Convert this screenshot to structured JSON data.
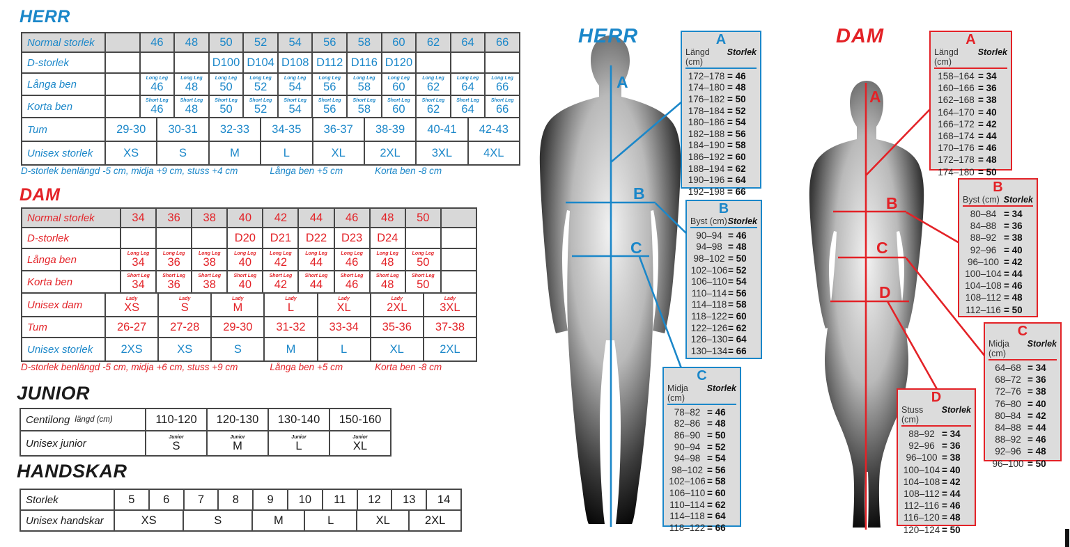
{
  "colors": {
    "blue": "#1b87c9",
    "red": "#e32227",
    "table_border": "#474747",
    "header_bg": "#d8d8d8",
    "box_bg": "#dcdcdc",
    "text_dark": "#1a1a1a"
  },
  "sections": {
    "herr": {
      "title": "HERR",
      "note_parts": [
        "D-storlek benlängd -5 cm, midja +9 cm, stuss +4 cm",
        "Långa ben +5 cm",
        "Korta ben -8 cm"
      ]
    },
    "dam": {
      "title": "DAM",
      "note_parts": [
        "D-storlek benlängd -5 cm, midja +6 cm, stuss +9 cm",
        "Långa ben +5 cm",
        "Korta ben -8 cm"
      ]
    },
    "junior": {
      "title": "JUNIOR"
    },
    "handskar": {
      "title": "HANDSKAR"
    }
  },
  "figures": {
    "herr": {
      "title": "HERR",
      "markers": [
        "A",
        "B",
        "C"
      ]
    },
    "dam": {
      "title": "DAM",
      "markers": [
        "A",
        "B",
        "C",
        "D"
      ]
    }
  },
  "tables": {
    "herr": {
      "color": "blue",
      "rows": [
        {
          "label": "Normal storlek",
          "hdr": true,
          "cells": [
            "",
            "46",
            "48",
            "50",
            "52",
            "54",
            "56",
            "58",
            "60",
            "62",
            "64",
            "66"
          ]
        },
        {
          "label": "D-storlek",
          "cells": [
            "",
            "",
            "",
            "D100",
            "D104",
            "D108",
            "D112",
            "D116",
            "D120",
            "",
            "",
            ""
          ]
        },
        {
          "label": "Långa ben",
          "cells": [
            "",
            {
              "t": "46",
              "sub": "Long Leg"
            },
            {
              "t": "48",
              "sub": "Long Leg"
            },
            {
              "t": "50",
              "sub": "Long Leg"
            },
            {
              "t": "52",
              "sub": "Long Leg"
            },
            {
              "t": "54",
              "sub": "Long Leg"
            },
            {
              "t": "56",
              "sub": "Long Leg"
            },
            {
              "t": "58",
              "sub": "Long Leg"
            },
            {
              "t": "60",
              "sub": "Long Leg"
            },
            {
              "t": "62",
              "sub": "Long Leg"
            },
            {
              "t": "64",
              "sub": "Long Leg"
            },
            {
              "t": "66",
              "sub": "Long Leg"
            }
          ]
        },
        {
          "label": "Korta ben",
          "cells": [
            "",
            {
              "t": "46",
              "sub": "Short Leg"
            },
            {
              "t": "48",
              "sub": "Short Leg"
            },
            {
              "t": "50",
              "sub": "Short Leg"
            },
            {
              "t": "52",
              "sub": "Short Leg"
            },
            {
              "t": "54",
              "sub": "Short Leg"
            },
            {
              "t": "56",
              "sub": "Short Leg"
            },
            {
              "t": "58",
              "sub": "Short Leg"
            },
            {
              "t": "60",
              "sub": "Short Leg"
            },
            {
              "t": "62",
              "sub": "Short Leg"
            },
            {
              "t": "64",
              "sub": "Short Leg"
            },
            {
              "t": "66",
              "sub": "Short Leg"
            }
          ]
        },
        {
          "label": "Tum",
          "cells": [
            {
              "t": "29-30",
              "s": 1.5
            },
            {
              "t": "30-31",
              "s": 1.5
            },
            {
              "t": "32-33",
              "s": 1.5
            },
            {
              "t": "34-35",
              "s": 1.5
            },
            {
              "t": "36-37",
              "s": 1.5
            },
            {
              "t": "38-39",
              "s": 1.5
            },
            {
              "t": "40-41",
              "s": 1.5
            },
            {
              "t": "42-43",
              "s": 1.5
            }
          ]
        },
        {
          "label": "Unisex storlek",
          "cells": [
            {
              "t": "XS",
              "s": 1.5
            },
            {
              "t": "S",
              "s": 1.5
            },
            {
              "t": "M",
              "s": 1.5
            },
            {
              "t": "L",
              "s": 1.5
            },
            {
              "t": "XL",
              "s": 1.5
            },
            {
              "t": "2XL",
              "s": 1.5
            },
            {
              "t": "3XL",
              "s": 1.5
            },
            {
              "t": "4XL",
              "s": 1.5
            }
          ]
        }
      ]
    },
    "dam": {
      "color": "red",
      "rows": [
        {
          "label": "Normal storlek",
          "hdr": true,
          "cells": [
            "34",
            "36",
            "38",
            "40",
            "42",
            "44",
            "46",
            "48",
            "50",
            ""
          ]
        },
        {
          "label": "D-storlek",
          "cells": [
            "",
            "",
            "",
            "D20",
            "D21",
            "D22",
            "D23",
            "D24",
            "",
            ""
          ]
        },
        {
          "label": "Långa ben",
          "cells": [
            {
              "t": "34",
              "sub": "Long Leg"
            },
            {
              "t": "36",
              "sub": "Long Leg"
            },
            {
              "t": "38",
              "sub": "Long Leg"
            },
            {
              "t": "40",
              "sub": "Long Leg"
            },
            {
              "t": "42",
              "sub": "Long Leg"
            },
            {
              "t": "44",
              "sub": "Long Leg"
            },
            {
              "t": "46",
              "sub": "Long Leg"
            },
            {
              "t": "48",
              "sub": "Long Leg"
            },
            {
              "t": "50",
              "sub": "Long Leg"
            },
            ""
          ]
        },
        {
          "label": "Korta ben",
          "cells": [
            {
              "t": "34",
              "sub": "Short Leg"
            },
            {
              "t": "36",
              "sub": "Short Leg"
            },
            {
              "t": "38",
              "sub": "Short Leg"
            },
            {
              "t": "40",
              "sub": "Short Leg"
            },
            {
              "t": "42",
              "sub": "Short Leg"
            },
            {
              "t": "44",
              "sub": "Short Leg"
            },
            {
              "t": "46",
              "sub": "Short Leg"
            },
            {
              "t": "48",
              "sub": "Short Leg"
            },
            {
              "t": "50",
              "sub": "Short Leg"
            },
            ""
          ]
        },
        {
          "label": "Unisex dam",
          "cells": [
            {
              "t": "XS",
              "sub": "Lady",
              "s": 1.4286
            },
            {
              "t": "S",
              "sub": "Lady",
              "s": 1.4286
            },
            {
              "t": "M",
              "sub": "Lady",
              "s": 1.4286
            },
            {
              "t": "L",
              "sub": "Lady",
              "s": 1.4286
            },
            {
              "t": "XL",
              "sub": "Lady",
              "s": 1.4286
            },
            {
              "t": "2XL",
              "sub": "Lady",
              "s": 1.4286
            },
            {
              "t": "3XL",
              "sub": "Lady",
              "s": 1.4286
            }
          ]
        },
        {
          "label": "Tum",
          "cells": [
            {
              "t": "26-27",
              "s": 1.4286
            },
            {
              "t": "27-28",
              "s": 1.4286
            },
            {
              "t": "29-30",
              "s": 1.4286
            },
            {
              "t": "31-32",
              "s": 1.4286
            },
            {
              "t": "33-34",
              "s": 1.4286
            },
            {
              "t": "35-36",
              "s": 1.4286
            },
            {
              "t": "37-38",
              "s": 1.4286
            }
          ]
        },
        {
          "label": "Unisex storlek",
          "color": "blue",
          "cells": [
            {
              "t": "2XS",
              "s": 1.4286
            },
            {
              "t": "XS",
              "s": 1.4286
            },
            {
              "t": "S",
              "s": 1.4286
            },
            {
              "t": "M",
              "s": 1.4286
            },
            {
              "t": "L",
              "s": 1.4286
            },
            {
              "t": "XL",
              "s": 1.4286
            },
            {
              "t": "2XL",
              "s": 1.4286
            }
          ]
        }
      ]
    },
    "junior": {
      "color": "dark",
      "rows": [
        {
          "label": "Centilong",
          "label2": "längd (cm)",
          "cells": [
            "110-120",
            "120-130",
            "130-140",
            "150-160"
          ]
        },
        {
          "label": "Unisex junior",
          "cells": [
            {
              "t": "S",
              "sub": "Junior"
            },
            {
              "t": "M",
              "sub": "Junior"
            },
            {
              "t": "L",
              "sub": "Junior"
            },
            {
              "t": "XL",
              "sub": "Junior"
            }
          ]
        }
      ]
    },
    "handskar": {
      "color": "dark",
      "rows": [
        {
          "label": "Storlek",
          "cells": [
            "5",
            "6",
            "7",
            "8",
            "9",
            "10",
            "11",
            "12",
            "13",
            "14"
          ]
        },
        {
          "label": "Unisex handskar",
          "cells": [
            {
              "t": "XS",
              "s": 2
            },
            {
              "t": "S",
              "s": 2
            },
            {
              "t": "M",
              "s": 1.5
            },
            {
              "t": "L",
              "s": 1.5
            },
            {
              "t": "XL",
              "s": 1.5
            },
            {
              "t": "2XL",
              "s": 1.5
            }
          ]
        }
      ]
    }
  },
  "boxes": {
    "herr_a": {
      "letter": "A",
      "color": "blue",
      "measure": "Längd (cm)",
      "storlek_label": "Storlek",
      "rows": [
        [
          "172–178",
          "46"
        ],
        [
          "174–180",
          "48"
        ],
        [
          "176–182",
          "50"
        ],
        [
          "178–184",
          "52"
        ],
        [
          "180–186",
          "54"
        ],
        [
          "182–188",
          "56"
        ],
        [
          "184–190",
          "58"
        ],
        [
          "186–192",
          "60"
        ],
        [
          "188–194",
          "62"
        ],
        [
          "190–196",
          "64"
        ],
        [
          "192–198",
          "66"
        ]
      ]
    },
    "herr_b": {
      "letter": "B",
      "color": "blue",
      "measure": "Byst (cm)",
      "storlek_label": "Storlek",
      "rows": [
        [
          "90–94",
          "46"
        ],
        [
          "94–98",
          "48"
        ],
        [
          "98–102",
          "50"
        ],
        [
          "102–106",
          "52"
        ],
        [
          "106–110",
          "54"
        ],
        [
          "110–114",
          "56"
        ],
        [
          "114–118",
          "58"
        ],
        [
          "118–122",
          "60"
        ],
        [
          "122–126",
          "62"
        ],
        [
          "126–130",
          "64"
        ],
        [
          "130–134",
          "66"
        ]
      ]
    },
    "herr_c": {
      "letter": "C",
      "color": "blue",
      "measure": "Midja (cm)",
      "storlek_label": "Storlek",
      "rows": [
        [
          "78–82",
          "46"
        ],
        [
          "82–86",
          "48"
        ],
        [
          "86–90",
          "50"
        ],
        [
          "90–94",
          "52"
        ],
        [
          "94–98",
          "54"
        ],
        [
          "98–102",
          "56"
        ],
        [
          "102–106",
          "58"
        ],
        [
          "106–110",
          "60"
        ],
        [
          "110–114",
          "62"
        ],
        [
          "114–118",
          "64"
        ],
        [
          "118–122",
          "66"
        ]
      ]
    },
    "dam_a": {
      "letter": "A",
      "color": "red",
      "measure": "Längd (cm)",
      "storlek_label": "Storlek",
      "rows": [
        [
          "158–164",
          "34"
        ],
        [
          "160–166",
          "36"
        ],
        [
          "162–168",
          "38"
        ],
        [
          "164–170",
          "40"
        ],
        [
          "166–172",
          "42"
        ],
        [
          "168–174",
          "44"
        ],
        [
          "170–176",
          "46"
        ],
        [
          "172–178",
          "48"
        ],
        [
          "174–180",
          "50"
        ]
      ]
    },
    "dam_b": {
      "letter": "B",
      "color": "red",
      "measure": "Byst (cm)",
      "storlek_label": "Storlek",
      "rows": [
        [
          "80–84",
          "34"
        ],
        [
          "84–88",
          "36"
        ],
        [
          "88–92",
          "38"
        ],
        [
          "92–96",
          "40"
        ],
        [
          "96–100",
          "42"
        ],
        [
          "100–104",
          "44"
        ],
        [
          "104–108",
          "46"
        ],
        [
          "108–112",
          "48"
        ],
        [
          "112–116",
          "50"
        ]
      ]
    },
    "dam_c": {
      "letter": "C",
      "color": "red",
      "measure": "Midja (cm)",
      "storlek_label": "Storlek",
      "rows": [
        [
          "64–68",
          "34"
        ],
        [
          "68–72",
          "36"
        ],
        [
          "72–76",
          "38"
        ],
        [
          "76–80",
          "40"
        ],
        [
          "80–84",
          "42"
        ],
        [
          "84–88",
          "44"
        ],
        [
          "88–92",
          "46"
        ],
        [
          "92–96",
          "48"
        ],
        [
          "96–100",
          "50"
        ]
      ]
    },
    "dam_d": {
      "letter": "D",
      "color": "red",
      "measure": "Stuss (cm)",
      "storlek_label": "Storlek",
      "rows": [
        [
          "88–92",
          "34"
        ],
        [
          "92–96",
          "36"
        ],
        [
          "96–100",
          "38"
        ],
        [
          "100–104",
          "40"
        ],
        [
          "104–108",
          "42"
        ],
        [
          "108–112",
          "44"
        ],
        [
          "112–116",
          "46"
        ],
        [
          "116–120",
          "48"
        ],
        [
          "120–124",
          "50"
        ]
      ]
    }
  }
}
